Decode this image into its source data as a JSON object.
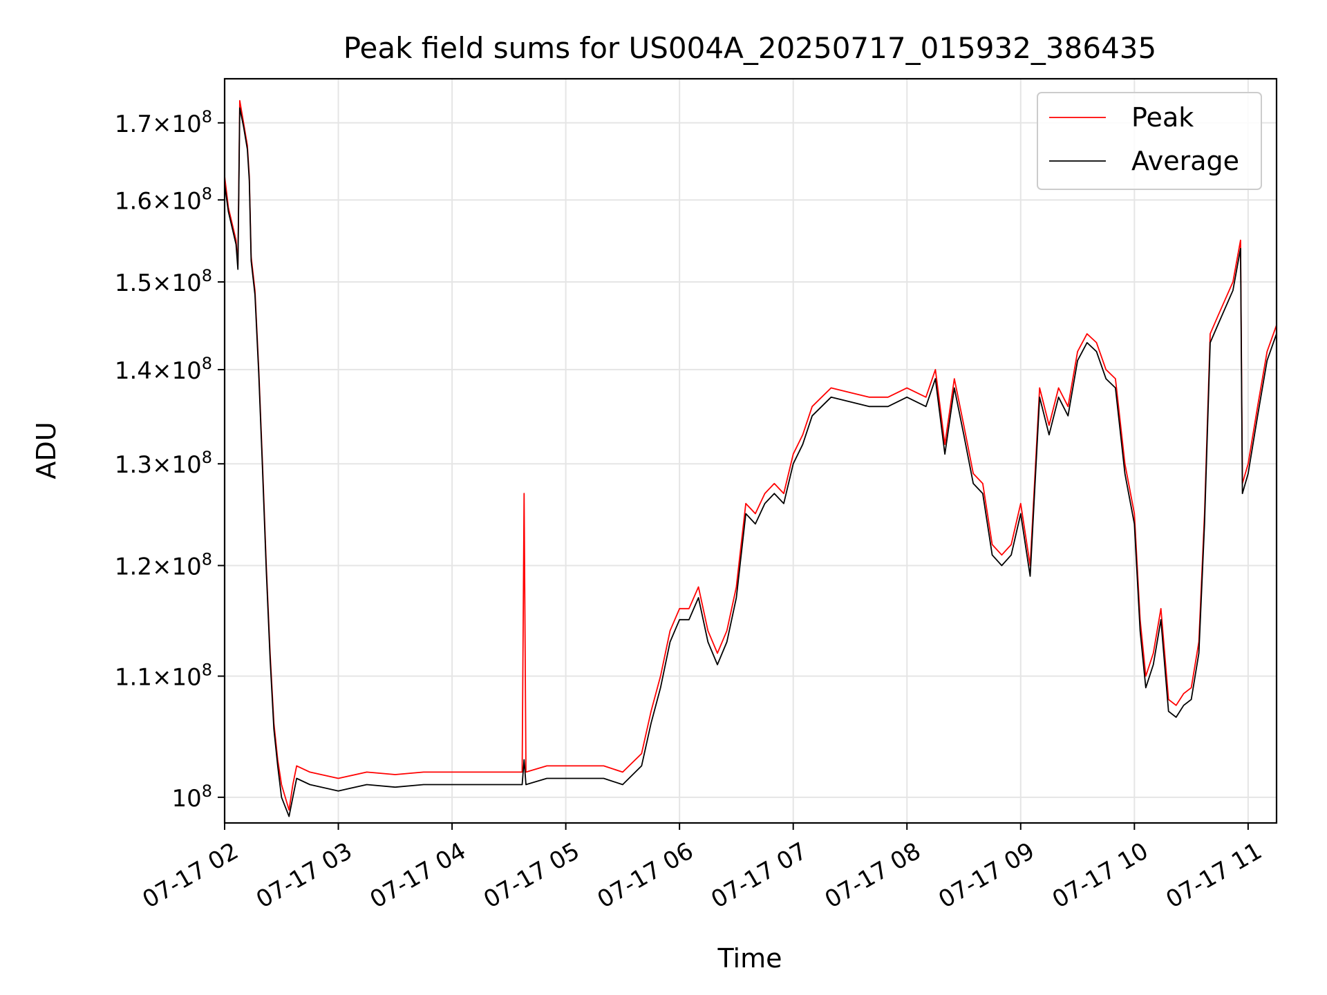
{
  "chart_data": {
    "type": "line",
    "title": "Peak field sums for US004A_20250717_015932_386435",
    "xlabel": "Time",
    "ylabel": "ADU",
    "x_start": "2025-07-17T02:00",
    "x_end": "2025-07-17T11:15",
    "xlim": [
      "2025-07-17T02:00",
      "2025-07-17T11:15"
    ],
    "ylim": [
      98000000,
      176000000
    ],
    "y_scale": "log",
    "grid": true,
    "legend_position": "top-right",
    "x_ticks": [
      {
        "label": "07-17 02",
        "value": "2025-07-17T02:00"
      },
      {
        "label": "07-17 03",
        "value": "2025-07-17T03:00"
      },
      {
        "label": "07-17 04",
        "value": "2025-07-17T04:00"
      },
      {
        "label": "07-17 05",
        "value": "2025-07-17T05:00"
      },
      {
        "label": "07-17 06",
        "value": "2025-07-17T06:00"
      },
      {
        "label": "07-17 07",
        "value": "2025-07-17T07:00"
      },
      {
        "label": "07-17 08",
        "value": "2025-07-17T08:00"
      },
      {
        "label": "07-17 09",
        "value": "2025-07-17T09:00"
      },
      {
        "label": "07-17 10",
        "value": "2025-07-17T10:00"
      },
      {
        "label": "07-17 11",
        "value": "2025-07-17T11:00"
      }
    ],
    "y_ticks": [
      {
        "mantissa": "",
        "exp": "8",
        "value": 100000000
      },
      {
        "mantissa": "1.1",
        "exp": "8",
        "value": 110000000
      },
      {
        "mantissa": "1.2",
        "exp": "8",
        "value": 120000000
      },
      {
        "mantissa": "1.3",
        "exp": "8",
        "value": 130000000
      },
      {
        "mantissa": "1.4",
        "exp": "8",
        "value": 140000000
      },
      {
        "mantissa": "1.5",
        "exp": "8",
        "value": 150000000
      },
      {
        "mantissa": "1.6",
        "exp": "8",
        "value": 160000000
      },
      {
        "mantissa": "1.7",
        "exp": "8",
        "value": 170000000
      }
    ],
    "series": [
      {
        "name": "Peak",
        "color": "#ff0000",
        "points": [
          [
            "2025-07-17T02:00",
            163000000.0
          ],
          [
            "2025-07-17T02:02",
            159000000.0
          ],
          [
            "2025-07-17T02:04",
            157000000.0
          ],
          [
            "2025-07-17T02:06",
            155000000.0
          ],
          [
            "2025-07-17T02:07",
            152000000.0
          ],
          [
            "2025-07-17T02:08",
            173000000.0
          ],
          [
            "2025-07-17T02:10",
            170000000.0
          ],
          [
            "2025-07-17T02:12",
            167000000.0
          ],
          [
            "2025-07-17T02:13",
            163000000.0
          ],
          [
            "2025-07-17T02:14",
            153000000.0
          ],
          [
            "2025-07-17T02:16",
            149000000.0
          ],
          [
            "2025-07-17T02:18",
            140000000.0
          ],
          [
            "2025-07-17T02:20",
            130000000.0
          ],
          [
            "2025-07-17T02:22",
            120000000.0
          ],
          [
            "2025-07-17T02:24",
            112000000.0
          ],
          [
            "2025-07-17T02:26",
            106000000.0
          ],
          [
            "2025-07-17T02:28",
            103000000.0
          ],
          [
            "2025-07-17T02:30",
            101000000.0
          ],
          [
            "2025-07-17T02:34",
            99000000.0
          ],
          [
            "2025-07-17T02:36",
            101000000.0
          ],
          [
            "2025-07-17T02:38",
            102500000.0
          ],
          [
            "2025-07-17T02:45",
            102000000.0
          ],
          [
            "2025-07-17T03:00",
            101500000.0
          ],
          [
            "2025-07-17T03:15",
            102000000.0
          ],
          [
            "2025-07-17T03:30",
            101800000.0
          ],
          [
            "2025-07-17T03:45",
            102000000.0
          ],
          [
            "2025-07-17T04:00",
            102000000.0
          ],
          [
            "2025-07-17T04:15",
            102000000.0
          ],
          [
            "2025-07-17T04:37",
            102000000.0
          ],
          [
            "2025-07-17T04:38",
            127000000.0
          ],
          [
            "2025-07-17T04:39",
            102000000.0
          ],
          [
            "2025-07-17T04:50",
            102500000.0
          ],
          [
            "2025-07-17T05:00",
            102500000.0
          ],
          [
            "2025-07-17T05:10",
            102500000.0
          ],
          [
            "2025-07-17T05:20",
            102500000.0
          ],
          [
            "2025-07-17T05:30",
            102000000.0
          ],
          [
            "2025-07-17T05:40",
            103500000.0
          ],
          [
            "2025-07-17T05:45",
            107000000.0
          ],
          [
            "2025-07-17T05:50",
            110000000.0
          ],
          [
            "2025-07-17T05:55",
            114000000.0
          ],
          [
            "2025-07-17T06:00",
            116000000.0
          ],
          [
            "2025-07-17T06:05",
            116000000.0
          ],
          [
            "2025-07-17T06:10",
            118000000.0
          ],
          [
            "2025-07-17T06:15",
            114000000.0
          ],
          [
            "2025-07-17T06:20",
            112000000.0
          ],
          [
            "2025-07-17T06:25",
            114000000.0
          ],
          [
            "2025-07-17T06:30",
            118000000.0
          ],
          [
            "2025-07-17T06:35",
            126000000.0
          ],
          [
            "2025-07-17T06:40",
            125000000.0
          ],
          [
            "2025-07-17T06:45",
            127000000.0
          ],
          [
            "2025-07-17T06:50",
            128000000.0
          ],
          [
            "2025-07-17T06:55",
            127000000.0
          ],
          [
            "2025-07-17T07:00",
            131000000.0
          ],
          [
            "2025-07-17T07:05",
            133000000.0
          ],
          [
            "2025-07-17T07:10",
            136000000.0
          ],
          [
            "2025-07-17T07:15",
            137000000.0
          ],
          [
            "2025-07-17T07:20",
            138000000.0
          ],
          [
            "2025-07-17T07:30",
            137500000.0
          ],
          [
            "2025-07-17T07:40",
            137000000.0
          ],
          [
            "2025-07-17T07:50",
            137000000.0
          ],
          [
            "2025-07-17T08:00",
            138000000.0
          ],
          [
            "2025-07-17T08:10",
            137000000.0
          ],
          [
            "2025-07-17T08:15",
            140000000.0
          ],
          [
            "2025-07-17T08:20",
            132000000.0
          ],
          [
            "2025-07-17T08:25",
            139000000.0
          ],
          [
            "2025-07-17T08:30",
            134000000.0
          ],
          [
            "2025-07-17T08:35",
            129000000.0
          ],
          [
            "2025-07-17T08:40",
            128000000.0
          ],
          [
            "2025-07-17T08:45",
            122000000.0
          ],
          [
            "2025-07-17T08:50",
            121000000.0
          ],
          [
            "2025-07-17T08:55",
            122000000.0
          ],
          [
            "2025-07-17T09:00",
            126000000.0
          ],
          [
            "2025-07-17T09:05",
            120000000.0
          ],
          [
            "2025-07-17T09:10",
            138000000.0
          ],
          [
            "2025-07-17T09:15",
            134000000.0
          ],
          [
            "2025-07-17T09:20",
            138000000.0
          ],
          [
            "2025-07-17T09:25",
            136000000.0
          ],
          [
            "2025-07-17T09:30",
            142000000.0
          ],
          [
            "2025-07-17T09:35",
            144000000.0
          ],
          [
            "2025-07-17T09:40",
            143000000.0
          ],
          [
            "2025-07-17T09:45",
            140000000.0
          ],
          [
            "2025-07-17T09:50",
            139000000.0
          ],
          [
            "2025-07-17T09:55",
            130000000.0
          ],
          [
            "2025-07-17T10:00",
            125000000.0
          ],
          [
            "2025-07-17T10:03",
            115000000.0
          ],
          [
            "2025-07-17T10:06",
            110000000.0
          ],
          [
            "2025-07-17T10:10",
            112000000.0
          ],
          [
            "2025-07-17T10:14",
            116000000.0
          ],
          [
            "2025-07-17T10:18",
            108000000.0
          ],
          [
            "2025-07-17T10:22",
            107500000.0
          ],
          [
            "2025-07-17T10:26",
            108500000.0
          ],
          [
            "2025-07-17T10:30",
            109000000.0
          ],
          [
            "2025-07-17T10:34",
            113000000.0
          ],
          [
            "2025-07-17T10:37",
            125000000.0
          ],
          [
            "2025-07-17T10:40",
            144000000.0
          ],
          [
            "2025-07-17T10:44",
            146000000.0
          ],
          [
            "2025-07-17T10:48",
            148000000.0
          ],
          [
            "2025-07-17T10:52",
            150000000.0
          ],
          [
            "2025-07-17T10:56",
            155000000.0
          ],
          [
            "2025-07-17T10:57",
            128000000.0
          ],
          [
            "2025-07-17T11:00",
            130000000.0
          ],
          [
            "2025-07-17T11:05",
            136000000.0
          ],
          [
            "2025-07-17T11:10",
            142000000.0
          ],
          [
            "2025-07-17T11:15",
            145000000.0
          ]
        ]
      },
      {
        "name": "Average",
        "color": "#000000",
        "points": [
          [
            "2025-07-17T02:00",
            162000000.0
          ],
          [
            "2025-07-17T02:02",
            158500000.0
          ],
          [
            "2025-07-17T02:04",
            156500000.0
          ],
          [
            "2025-07-17T02:06",
            154500000.0
          ],
          [
            "2025-07-17T02:07",
            151500000.0
          ],
          [
            "2025-07-17T02:08",
            172000000.0
          ],
          [
            "2025-07-17T02:10",
            169500000.0
          ],
          [
            "2025-07-17T02:12",
            166500000.0
          ],
          [
            "2025-07-17T02:13",
            162500000.0
          ],
          [
            "2025-07-17T02:14",
            152500000.0
          ],
          [
            "2025-07-17T02:16",
            148500000.0
          ],
          [
            "2025-07-17T02:18",
            139500000.0
          ],
          [
            "2025-07-17T02:20",
            129500000.0
          ],
          [
            "2025-07-17T02:22",
            119500000.0
          ],
          [
            "2025-07-17T02:24",
            111500000.0
          ],
          [
            "2025-07-17T02:26",
            105500000.0
          ],
          [
            "2025-07-17T02:28",
            102500000.0
          ],
          [
            "2025-07-17T02:30",
            100000000.0
          ],
          [
            "2025-07-17T02:34",
            98500000.0
          ],
          [
            "2025-07-17T02:36",
            100000000.0
          ],
          [
            "2025-07-17T02:38",
            101500000.0
          ],
          [
            "2025-07-17T02:45",
            101000000.0
          ],
          [
            "2025-07-17T03:00",
            100500000.0
          ],
          [
            "2025-07-17T03:15",
            101000000.0
          ],
          [
            "2025-07-17T03:30",
            100800000.0
          ],
          [
            "2025-07-17T03:45",
            101000000.0
          ],
          [
            "2025-07-17T04:00",
            101000000.0
          ],
          [
            "2025-07-17T04:15",
            101000000.0
          ],
          [
            "2025-07-17T04:37",
            101000000.0
          ],
          [
            "2025-07-17T04:38",
            103000000.0
          ],
          [
            "2025-07-17T04:39",
            101000000.0
          ],
          [
            "2025-07-17T04:50",
            101500000.0
          ],
          [
            "2025-07-17T05:00",
            101500000.0
          ],
          [
            "2025-07-17T05:10",
            101500000.0
          ],
          [
            "2025-07-17T05:20",
            101500000.0
          ],
          [
            "2025-07-17T05:30",
            101000000.0
          ],
          [
            "2025-07-17T05:40",
            102500000.0
          ],
          [
            "2025-07-17T05:45",
            106000000.0
          ],
          [
            "2025-07-17T05:50",
            109000000.0
          ],
          [
            "2025-07-17T05:55",
            113000000.0
          ],
          [
            "2025-07-17T06:00",
            115000000.0
          ],
          [
            "2025-07-17T06:05",
            115000000.0
          ],
          [
            "2025-07-17T06:10",
            117000000.0
          ],
          [
            "2025-07-17T06:15",
            113000000.0
          ],
          [
            "2025-07-17T06:20",
            111000000.0
          ],
          [
            "2025-07-17T06:25",
            113000000.0
          ],
          [
            "2025-07-17T06:30",
            117000000.0
          ],
          [
            "2025-07-17T06:35",
            125000000.0
          ],
          [
            "2025-07-17T06:40",
            124000000.0
          ],
          [
            "2025-07-17T06:45",
            126000000.0
          ],
          [
            "2025-07-17T06:50",
            127000000.0
          ],
          [
            "2025-07-17T06:55",
            126000000.0
          ],
          [
            "2025-07-17T07:00",
            130000000.0
          ],
          [
            "2025-07-17T07:05",
            132000000.0
          ],
          [
            "2025-07-17T07:10",
            135000000.0
          ],
          [
            "2025-07-17T07:15",
            136000000.0
          ],
          [
            "2025-07-17T07:20",
            137000000.0
          ],
          [
            "2025-07-17T07:30",
            136500000.0
          ],
          [
            "2025-07-17T07:40",
            136000000.0
          ],
          [
            "2025-07-17T07:50",
            136000000.0
          ],
          [
            "2025-07-17T08:00",
            137000000.0
          ],
          [
            "2025-07-17T08:10",
            136000000.0
          ],
          [
            "2025-07-17T08:15",
            139000000.0
          ],
          [
            "2025-07-17T08:20",
            131000000.0
          ],
          [
            "2025-07-17T08:25",
            138000000.0
          ],
          [
            "2025-07-17T08:30",
            133000000.0
          ],
          [
            "2025-07-17T08:35",
            128000000.0
          ],
          [
            "2025-07-17T08:40",
            127000000.0
          ],
          [
            "2025-07-17T08:45",
            121000000.0
          ],
          [
            "2025-07-17T08:50",
            120000000.0
          ],
          [
            "2025-07-17T08:55",
            121000000.0
          ],
          [
            "2025-07-17T09:00",
            125000000.0
          ],
          [
            "2025-07-17T09:05",
            119000000.0
          ],
          [
            "2025-07-17T09:10",
            137000000.0
          ],
          [
            "2025-07-17T09:15",
            133000000.0
          ],
          [
            "2025-07-17T09:20",
            137000000.0
          ],
          [
            "2025-07-17T09:25",
            135000000.0
          ],
          [
            "2025-07-17T09:30",
            141000000.0
          ],
          [
            "2025-07-17T09:35",
            143000000.0
          ],
          [
            "2025-07-17T09:40",
            142000000.0
          ],
          [
            "2025-07-17T09:45",
            139000000.0
          ],
          [
            "2025-07-17T09:50",
            138000000.0
          ],
          [
            "2025-07-17T09:55",
            129000000.0
          ],
          [
            "2025-07-17T10:00",
            124000000.0
          ],
          [
            "2025-07-17T10:03",
            114000000.0
          ],
          [
            "2025-07-17T10:06",
            109000000.0
          ],
          [
            "2025-07-17T10:10",
            111000000.0
          ],
          [
            "2025-07-17T10:14",
            115000000.0
          ],
          [
            "2025-07-17T10:18",
            107000000.0
          ],
          [
            "2025-07-17T10:22",
            106500000.0
          ],
          [
            "2025-07-17T10:26",
            107500000.0
          ],
          [
            "2025-07-17T10:30",
            108000000.0
          ],
          [
            "2025-07-17T10:34",
            112000000.0
          ],
          [
            "2025-07-17T10:37",
            124000000.0
          ],
          [
            "2025-07-17T10:40",
            143000000.0
          ],
          [
            "2025-07-17T10:44",
            145000000.0
          ],
          [
            "2025-07-17T10:48",
            147000000.0
          ],
          [
            "2025-07-17T10:52",
            149000000.0
          ],
          [
            "2025-07-17T10:56",
            154000000.0
          ],
          [
            "2025-07-17T10:57",
            127000000.0
          ],
          [
            "2025-07-17T11:00",
            129000000.0
          ],
          [
            "2025-07-17T11:05",
            135000000.0
          ],
          [
            "2025-07-17T11:10",
            141000000.0
          ],
          [
            "2025-07-17T11:15",
            144000000.0
          ]
        ]
      }
    ]
  }
}
